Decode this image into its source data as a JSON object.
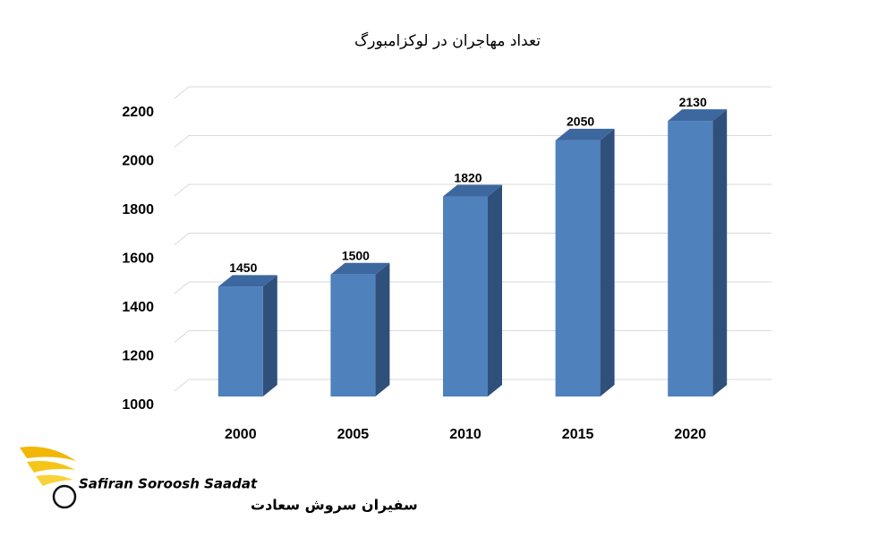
{
  "chart_data": {
    "type": "bar3d",
    "title": "تعداد مهاجران در لوکزامبورگ",
    "categories": [
      "2000",
      "2005",
      "2010",
      "2015",
      "2020"
    ],
    "values": [
      1450,
      1500,
      1820,
      2050,
      2130
    ],
    "color": "#4f81bd",
    "ylim": [
      1000,
      2200
    ],
    "yticks": [
      1000,
      1200,
      1400,
      1600,
      1800,
      2000,
      2200
    ],
    "grid": true
  },
  "logo": {
    "name_en": "Safiran Soroosh Saadat",
    "name_fa": "سفیران سروش سعادت"
  }
}
